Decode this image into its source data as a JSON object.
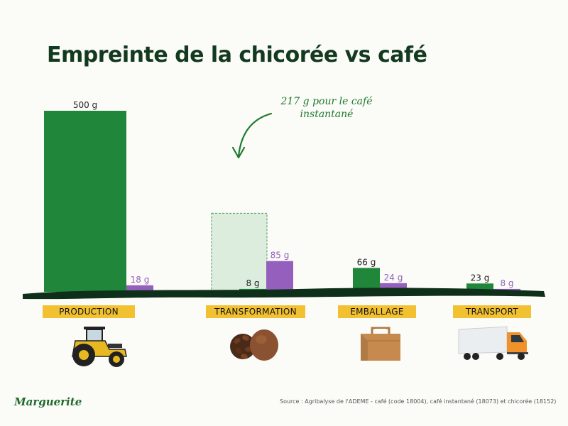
{
  "title": "Empreinte de la chicorée vs café",
  "annotation": {
    "line1": "217 g pour le café",
    "line2": "instantané"
  },
  "source": "Source : Agribalyse de l'ADEME - café (code 18004), café instantané (18073) et chicorée (18152)",
  "brand": "Marguerite",
  "colors": {
    "green": "#20873a",
    "purple": "#9560bd",
    "label_bg": "#f2c132",
    "ghost_fill": "#dcedde",
    "ground": "#0e2f19"
  },
  "icons": {
    "production": "tractor-icon",
    "transformation": "coffee-beans-icon",
    "emballage": "cardboard-box-icon",
    "transport": "truck-icon"
  },
  "chart_data": {
    "type": "bar",
    "title": "Empreinte de la chicorée vs café",
    "categories": [
      "PRODUCTION",
      "TRANSFORMATION",
      "EMBALLAGE",
      "TRANSPORT"
    ],
    "series": [
      {
        "values": [
          500,
          8,
          66,
          23
        ],
        "labels": [
          "500 g",
          "8 g",
          "66 g",
          "23 g"
        ],
        "color": "#20873a"
      },
      {
        "values": [
          18,
          85,
          24,
          8
        ],
        "labels": [
          "18 g",
          "85 g",
          "24 g",
          "8 g"
        ],
        "color": "#9560bd"
      }
    ],
    "ghost_bar": {
      "category": "TRANSFORMATION",
      "value": 217,
      "label": "217 g pour le café instantané"
    },
    "ylim": [
      0,
      500
    ],
    "grid": false,
    "legend": "none"
  }
}
